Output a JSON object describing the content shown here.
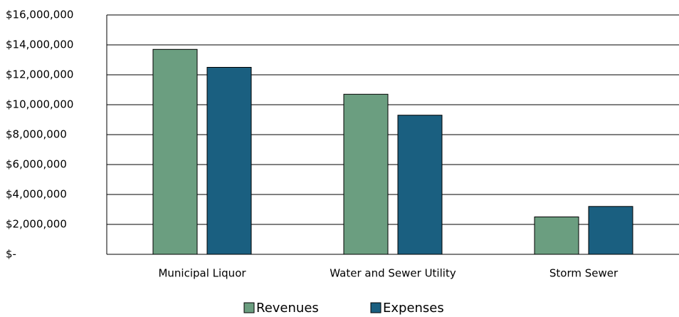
{
  "chart_data": {
    "type": "bar",
    "categories": [
      "Municipal Liquor",
      "Water and Sewer Utility",
      "Storm Sewer"
    ],
    "series": [
      {
        "name": "Revenues",
        "color": "#6b9e80",
        "values": [
          13700000,
          10700000,
          2500000
        ]
      },
      {
        "name": "Expenses",
        "color": "#1a5f80",
        "values": [
          12500000,
          9300000,
          3200000
        ]
      }
    ],
    "ylim": [
      0,
      16000000
    ],
    "yticks": [
      {
        "value": 0,
        "label": "$-"
      },
      {
        "value": 2000000,
        "label": "$2,000,000"
      },
      {
        "value": 4000000,
        "label": "$4,000,000"
      },
      {
        "value": 6000000,
        "label": "$6,000,000"
      },
      {
        "value": 8000000,
        "label": "$8,000,000"
      },
      {
        "value": 10000000,
        "label": "$10,000,000"
      },
      {
        "value": 12000000,
        "label": "$12,000,000"
      },
      {
        "value": 14000000,
        "label": "$14,000,000"
      },
      {
        "value": 16000000,
        "label": "$16,000,000"
      }
    ],
    "grid": true,
    "legend": "bottom"
  }
}
